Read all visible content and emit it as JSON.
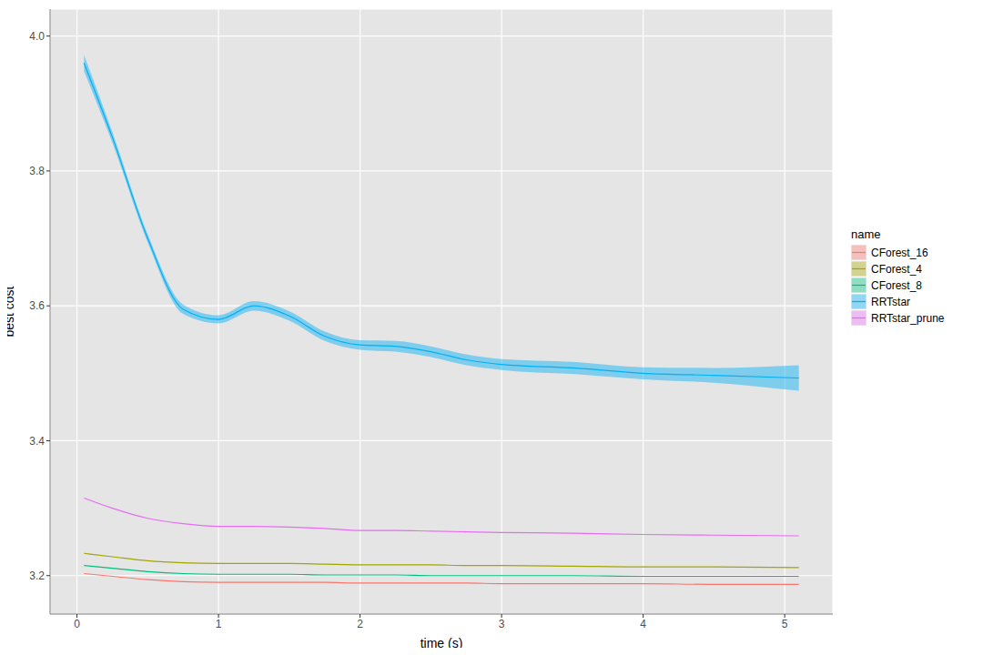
{
  "chart_data": {
    "type": "line",
    "x_label": "time (s)",
    "y_label": "best cost",
    "legend_title": "name",
    "legend": "right",
    "grid": true,
    "xlim": [
      -0.19,
      5.34
    ],
    "xticks": [
      0,
      1,
      2,
      3,
      4,
      5
    ],
    "ylim": [
      3.143,
      4.04
    ],
    "yticks": [
      3.2,
      3.4,
      3.6,
      3.8,
      {
        "value": 4,
        "label": "4.0"
      }
    ],
    "x": [
      0.05,
      0.25,
      0.5,
      0.75,
      1,
      1.25,
      1.5,
      1.75,
      2,
      2.25,
      2.5,
      2.75,
      3,
      3.5,
      4,
      4.5,
      5.1
    ],
    "series": [
      {
        "name": "CForest_16",
        "color": "#F8766D",
        "values": [
          3.203,
          3.199,
          3.194,
          3.191,
          3.19,
          3.19,
          3.19,
          3.19,
          3.189,
          3.189,
          3.189,
          3.189,
          3.188,
          3.188,
          3.188,
          3.187,
          3.187
        ]
      },
      {
        "name": "CForest_4",
        "color": "#A3A500",
        "values": [
          3.233,
          3.228,
          3.222,
          3.219,
          3.218,
          3.218,
          3.218,
          3.217,
          3.216,
          3.216,
          3.216,
          3.215,
          3.215,
          3.214,
          3.213,
          3.213,
          3.212
        ]
      },
      {
        "name": "CForest_8",
        "color": "#00BF7D",
        "values": [
          3.215,
          3.211,
          3.206,
          3.203,
          3.202,
          3.202,
          3.202,
          3.201,
          3.201,
          3.201,
          3.2,
          3.2,
          3.2,
          3.2,
          3.199,
          3.199,
          3.199
        ]
      },
      {
        "name": "RRTstar",
        "color": "#00B0F6",
        "values": [
          3.96,
          3.85,
          3.7,
          3.595,
          3.58,
          3.6,
          3.585,
          3.555,
          3.542,
          3.54,
          3.532,
          3.52,
          3.513,
          3.508,
          3.5,
          3.497,
          3.493
        ],
        "lower": [
          3.948,
          3.842,
          3.694,
          3.588,
          3.574,
          3.593,
          3.578,
          3.548,
          3.535,
          3.532,
          3.524,
          3.512,
          3.505,
          3.499,
          3.491,
          3.486,
          3.474
        ],
        "upper": [
          3.972,
          3.858,
          3.706,
          3.602,
          3.586,
          3.607,
          3.592,
          3.562,
          3.549,
          3.548,
          3.54,
          3.528,
          3.521,
          3.517,
          3.509,
          3.508,
          3.512
        ]
      },
      {
        "name": "RRTstar_prune",
        "color": "#E76BF3",
        "values": [
          3.315,
          3.3,
          3.285,
          3.277,
          3.273,
          3.273,
          3.272,
          3.27,
          3.267,
          3.267,
          3.266,
          3.265,
          3.264,
          3.263,
          3.261,
          3.26,
          3.259
        ]
      }
    ]
  }
}
